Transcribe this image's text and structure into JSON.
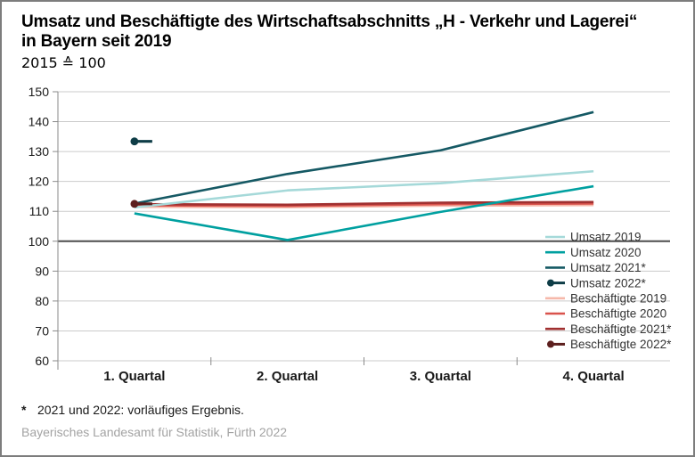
{
  "header": {
    "title_line1": "Umsatz und Beschäftigte des Wirtschaftsabschnitts „H - Verkehr und Lagerei“",
    "title_line2": "in Bayern seit 2019",
    "subtitle": "2015 ≙ 100"
  },
  "footnote": {
    "marker": "*",
    "text": "2021 und 2022: vorläufiges Ergebnis."
  },
  "source": "Bayerisches Landesamt für Statistik, Fürth 2022",
  "colors": {
    "gridline": "#cbcbcb",
    "baseline": "#4d4d4d",
    "axis": "#8a8a8a",
    "tick_text": "#1a1a1a",
    "legend_text": "#333333",
    "source_text": "#a3a3a3"
  },
  "chart_data": {
    "type": "line",
    "title": "Umsatz und Beschäftigte des Wirtschaftsabschnitts „H - Verkehr und Lagerei“ in Bayern seit 2019",
    "subtitle": "2015 ≙ 100",
    "categories": [
      "1. Quartal",
      "2. Quartal",
      "3. Quartal",
      "4. Quartal"
    ],
    "ylim": [
      60,
      150
    ],
    "ytick_step": 10,
    "baseline": 100,
    "grid": "horizontal",
    "legend_position": "inside-right-middle",
    "series": [
      {
        "name": "Umsatz 2019",
        "color": "#a5d9d9",
        "style": "line",
        "zorder": 4,
        "values": [
          111.3,
          117.0,
          119.4,
          123.4
        ]
      },
      {
        "name": "Umsatz 2020",
        "color": "#00a0a0",
        "style": "line",
        "zorder": 5,
        "values": [
          109.3,
          100.4,
          109.8,
          118.4
        ]
      },
      {
        "name": "Umsatz 2021*",
        "color": "#155964",
        "style": "line",
        "zorder": 6,
        "values": [
          112.6,
          122.5,
          130.4,
          143.2
        ]
      },
      {
        "name": "Umsatz 2022*",
        "color": "#0e3d47",
        "style": "point",
        "zorder": 8,
        "values": [
          133.4,
          null,
          null,
          null
        ]
      },
      {
        "name": "Beschäftigte 2019",
        "color": "#f6b8aa",
        "style": "line",
        "zorder": 1,
        "values": [
          111.5,
          111.4,
          111.9,
          112.1
        ]
      },
      {
        "name": "Beschäftigte 2020",
        "color": "#d9534c",
        "style": "line",
        "zorder": 2,
        "values": [
          112.0,
          111.8,
          112.4,
          112.6
        ]
      },
      {
        "name": "Beschäftigte 2021*",
        "color": "#a03030",
        "style": "line",
        "zorder": 3,
        "values": [
          112.4,
          112.2,
          112.9,
          113.1
        ]
      },
      {
        "name": "Beschäftigte 2022*",
        "color": "#5c1f1e",
        "style": "point",
        "zorder": 7,
        "values": [
          112.5,
          null,
          null,
          null
        ]
      }
    ]
  }
}
